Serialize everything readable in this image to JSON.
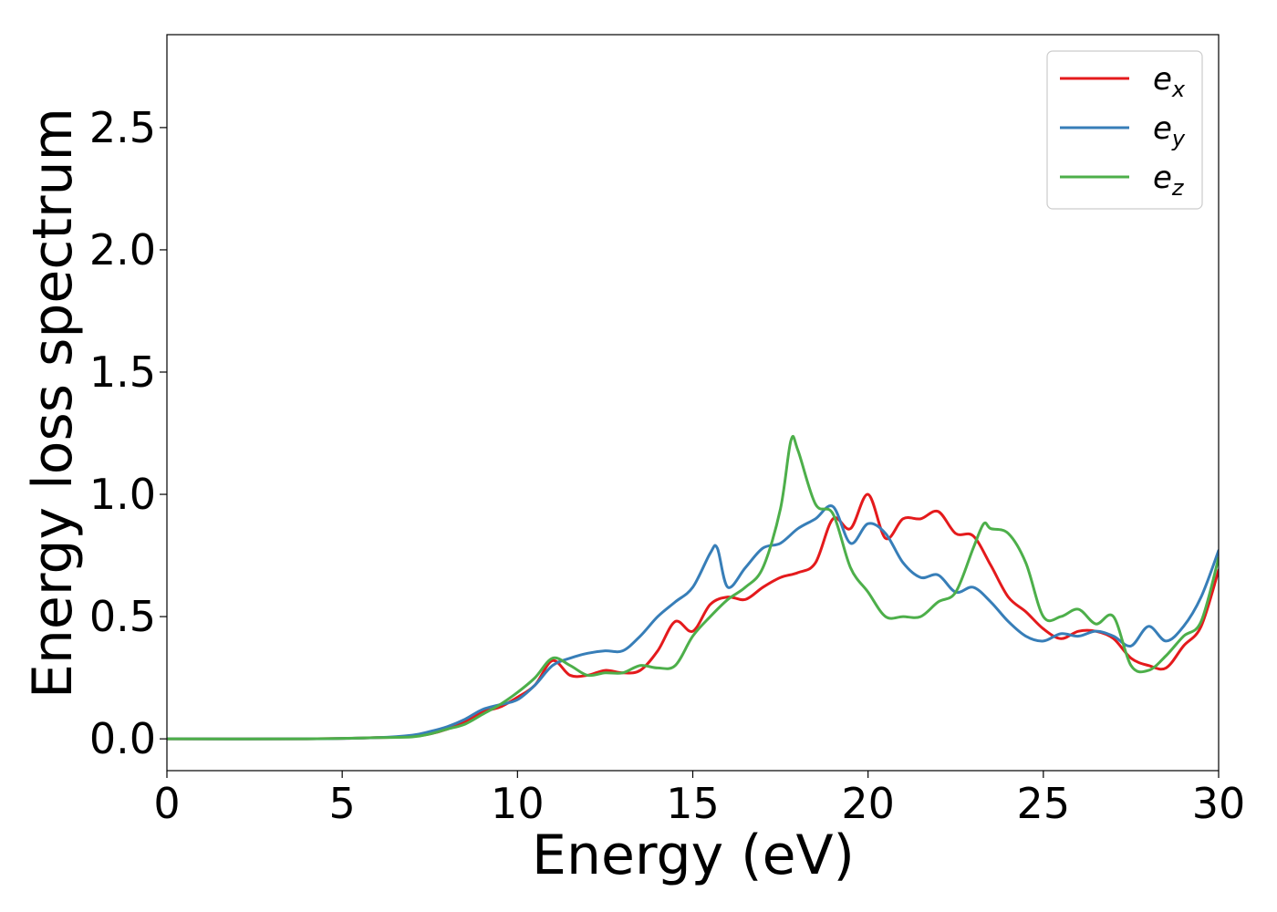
{
  "chart_data": {
    "type": "line",
    "xlabel": "Energy (eV)",
    "ylabel": "Energy loss spectrum",
    "xlim": [
      0,
      30
    ],
    "ylim": [
      -0.13,
      2.88
    ],
    "xticks": [
      0,
      5,
      10,
      15,
      20,
      25,
      30
    ],
    "xtick_labels": [
      "0",
      "5",
      "10",
      "15",
      "20",
      "25",
      "30"
    ],
    "yticks": [
      0.0,
      0.5,
      1.0,
      1.5,
      2.0,
      2.5
    ],
    "ytick_labels": [
      "0.0",
      "0.5",
      "1.0",
      "1.5",
      "2.0",
      "2.5"
    ],
    "grid": false,
    "legend": "top-right",
    "series": [
      {
        "name": "e",
        "subscript": "x",
        "color": "#e41a1c",
        "x": [
          0,
          4,
          6,
          7,
          7.5,
          8,
          8.5,
          9,
          9.5,
          10,
          10.5,
          11,
          11.5,
          12,
          12.5,
          13,
          13.5,
          14,
          14.5,
          15,
          15.5,
          16,
          16.5,
          17,
          17.5,
          18,
          18.5,
          19,
          19.5,
          20,
          20.5,
          21,
          21.5,
          22,
          22.5,
          23,
          23.5,
          24,
          24.5,
          25,
          25.5,
          26,
          26.5,
          27,
          27.5,
          28,
          28.5,
          29,
          29.5,
          30
        ],
        "y": [
          0.0,
          0.0,
          0.005,
          0.01,
          0.02,
          0.04,
          0.07,
          0.11,
          0.13,
          0.17,
          0.22,
          0.32,
          0.26,
          0.26,
          0.28,
          0.27,
          0.28,
          0.36,
          0.48,
          0.44,
          0.55,
          0.58,
          0.57,
          0.62,
          0.66,
          0.68,
          0.72,
          0.9,
          0.86,
          1.0,
          0.82,
          0.9,
          0.9,
          0.93,
          0.84,
          0.83,
          0.71,
          0.58,
          0.52,
          0.45,
          0.41,
          0.44,
          0.44,
          0.41,
          0.33,
          0.3,
          0.29,
          0.38,
          0.46,
          0.69
        ]
      },
      {
        "name": "e",
        "subscript": "y",
        "color": "#377eb8",
        "x": [
          0,
          4,
          6,
          7,
          7.5,
          8,
          8.5,
          9,
          9.5,
          10,
          10.5,
          11,
          11.5,
          12,
          12.5,
          13,
          13.5,
          14,
          14.5,
          15,
          15.5,
          15.7,
          16,
          16.5,
          17,
          17.5,
          18,
          18.5,
          19,
          19.5,
          20,
          20.5,
          21,
          21.5,
          22,
          22.5,
          23,
          23.5,
          24,
          24.5,
          25,
          25.5,
          26,
          26.5,
          27,
          27.5,
          28,
          28.5,
          29,
          29.5,
          30
        ],
        "y": [
          0.0,
          0.0,
          0.005,
          0.015,
          0.03,
          0.05,
          0.08,
          0.12,
          0.14,
          0.16,
          0.22,
          0.3,
          0.33,
          0.35,
          0.36,
          0.36,
          0.42,
          0.5,
          0.56,
          0.62,
          0.76,
          0.78,
          0.62,
          0.7,
          0.78,
          0.8,
          0.86,
          0.9,
          0.95,
          0.8,
          0.88,
          0.84,
          0.72,
          0.66,
          0.67,
          0.6,
          0.62,
          0.56,
          0.48,
          0.42,
          0.4,
          0.43,
          0.42,
          0.44,
          0.42,
          0.38,
          0.46,
          0.4,
          0.46,
          0.58,
          0.77
        ]
      },
      {
        "name": "e",
        "subscript": "z",
        "color": "#4daf4a",
        "x": [
          0,
          4,
          6,
          7,
          7.5,
          8,
          8.5,
          9,
          9.5,
          10,
          10.5,
          11,
          11.5,
          12,
          12.5,
          13,
          13.5,
          14,
          14.5,
          15,
          15.5,
          16,
          16.5,
          17,
          17.5,
          17.8,
          18,
          18.5,
          19,
          19.5,
          20,
          20.5,
          21,
          21.5,
          22,
          22.5,
          23,
          23.3,
          23.5,
          24,
          24.5,
          25,
          25.5,
          26,
          26.5,
          27,
          27.5,
          28,
          28.5,
          29,
          29.5,
          30
        ],
        "y": [
          0.0,
          0.0,
          0.005,
          0.008,
          0.02,
          0.04,
          0.06,
          0.1,
          0.14,
          0.19,
          0.25,
          0.33,
          0.3,
          0.26,
          0.27,
          0.27,
          0.3,
          0.29,
          0.3,
          0.42,
          0.5,
          0.57,
          0.62,
          0.7,
          0.94,
          1.22,
          1.18,
          0.96,
          0.92,
          0.7,
          0.6,
          0.5,
          0.5,
          0.5,
          0.56,
          0.6,
          0.78,
          0.88,
          0.86,
          0.84,
          0.72,
          0.5,
          0.5,
          0.53,
          0.47,
          0.5,
          0.3,
          0.28,
          0.34,
          0.42,
          0.48,
          0.74
        ]
      }
    ]
  }
}
